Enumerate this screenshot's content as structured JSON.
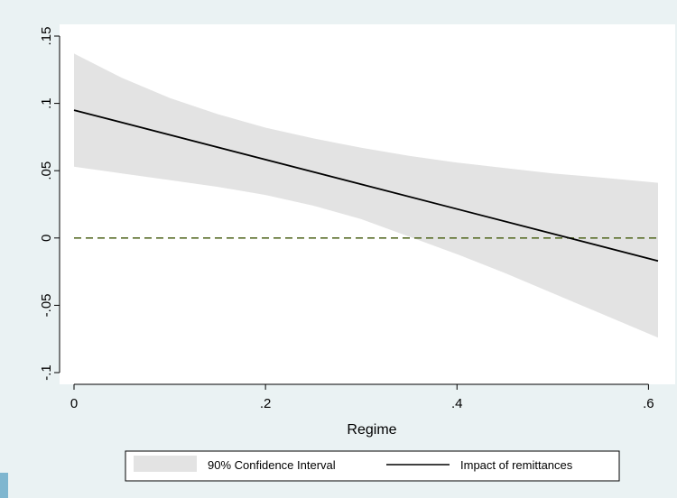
{
  "chart_data": {
    "type": "line",
    "title": "",
    "xlabel": "Regime",
    "ylabel": "",
    "xlim": [
      0,
      0.61
    ],
    "ylim": [
      -0.1,
      0.15
    ],
    "x_ticks": [
      {
        "value": 0,
        "label": "0"
      },
      {
        "value": 0.2,
        "label": ".2"
      },
      {
        "value": 0.4,
        "label": ".4"
      },
      {
        "value": 0.6,
        "label": ".6"
      }
    ],
    "y_ticks": [
      {
        "value": -0.1,
        "label": "-.1"
      },
      {
        "value": -0.05,
        "label": "-.05"
      },
      {
        "value": 0,
        "label": "0"
      },
      {
        "value": 0.05,
        "label": ".05"
      },
      {
        "value": 0.1,
        "label": ".1"
      },
      {
        "value": 0.15,
        "label": ".15"
      }
    ],
    "grid": false,
    "reference_line": {
      "y": 0,
      "style": "dashed",
      "color": "#5a6e2a"
    },
    "series": [
      {
        "name": "Impact of remittances",
        "kind": "line",
        "color": "#000000",
        "x": [
          0,
          0.61
        ],
        "y": [
          0.095,
          -0.017
        ]
      },
      {
        "name": "90% Confidence Interval",
        "kind": "band",
        "color": "#e3e3e3",
        "x": [
          0,
          0.05,
          0.1,
          0.15,
          0.2,
          0.25,
          0.3,
          0.35,
          0.4,
          0.45,
          0.5,
          0.55,
          0.61
        ],
        "upper": [
          0.137,
          0.119,
          0.104,
          0.092,
          0.082,
          0.074,
          0.067,
          0.061,
          0.056,
          0.052,
          0.048,
          0.045,
          0.041
        ],
        "lower": [
          0.053,
          0.048,
          0.043,
          0.038,
          0.032,
          0.024,
          0.014,
          0.001,
          -0.012,
          -0.026,
          -0.041,
          -0.056,
          -0.074
        ]
      }
    ],
    "legend": {
      "position": "bottom",
      "entries": [
        {
          "label": "90% Confidence Interval",
          "kind": "band"
        },
        {
          "label": "Impact of remittances",
          "kind": "line"
        }
      ]
    }
  }
}
